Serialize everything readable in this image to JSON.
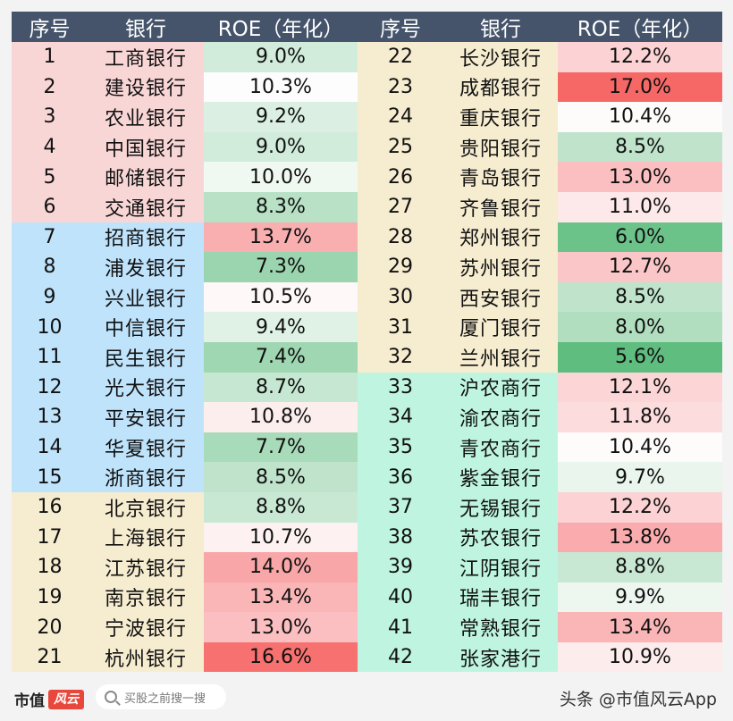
{
  "header": {
    "idx": "序号",
    "bank": "银行",
    "roe": "ROE（年化）"
  },
  "colors": {
    "large_state": "#f9d6d6",
    "joint_stock": "#bfe3fb",
    "city_bank": "#f6ecd0",
    "rural_bank": "#bff5e0",
    "header_bg": "#45546b"
  },
  "left_rows": [
    {
      "idx": "1",
      "bank": "工商银行",
      "roe": "9.0%",
      "group": "large_state",
      "color": "#d2ecdb"
    },
    {
      "idx": "2",
      "bank": "建设银行",
      "roe": "10.3%",
      "group": "large_state",
      "color": "#fdfdfd"
    },
    {
      "idx": "3",
      "bank": "农业银行",
      "roe": "9.2%",
      "group": "large_state",
      "color": "#dbf0e2"
    },
    {
      "idx": "4",
      "bank": "中国银行",
      "roe": "9.0%",
      "group": "large_state",
      "color": "#d2ecdb"
    },
    {
      "idx": "5",
      "bank": "邮储银行",
      "roe": "10.0%",
      "group": "large_state",
      "color": "#f0f8f2"
    },
    {
      "idx": "6",
      "bank": "交通银行",
      "roe": "8.3%",
      "group": "large_state",
      "color": "#b8e1c6"
    },
    {
      "idx": "7",
      "bank": "招商银行",
      "roe": "13.7%",
      "group": "joint_stock",
      "color": "#f9aeb0"
    },
    {
      "idx": "8",
      "bank": "浦发银行",
      "roe": "7.3%",
      "group": "joint_stock",
      "color": "#9bd5af"
    },
    {
      "idx": "9",
      "bank": "兴业银行",
      "roe": "10.5%",
      "group": "joint_stock",
      "color": "#fef8f8"
    },
    {
      "idx": "10",
      "bank": "中信银行",
      "roe": "9.4%",
      "group": "joint_stock",
      "color": "#e0f2e6"
    },
    {
      "idx": "11",
      "bank": "民生银行",
      "roe": "7.4%",
      "group": "joint_stock",
      "color": "#9fd7b2"
    },
    {
      "idx": "12",
      "bank": "光大银行",
      "roe": "8.7%",
      "group": "joint_stock",
      "color": "#c6e7d1"
    },
    {
      "idx": "13",
      "bank": "平安银行",
      "roe": "10.8%",
      "group": "joint_stock",
      "color": "#fdeeee"
    },
    {
      "idx": "14",
      "bank": "华夏银行",
      "roe": "7.7%",
      "group": "joint_stock",
      "color": "#a8dbba"
    },
    {
      "idx": "15",
      "bank": "浙商银行",
      "roe": "8.5%",
      "group": "joint_stock",
      "color": "#bfe4cb"
    },
    {
      "idx": "16",
      "bank": "北京银行",
      "roe": "8.8%",
      "group": "city_bank",
      "color": "#c9e8d4"
    },
    {
      "idx": "17",
      "bank": "上海银行",
      "roe": "10.7%",
      "group": "city_bank",
      "color": "#fdf1f1"
    },
    {
      "idx": "18",
      "bank": "江苏银行",
      "roe": "14.0%",
      "group": "city_bank",
      "color": "#f8a6a8"
    },
    {
      "idx": "19",
      "bank": "南京银行",
      "roe": "13.4%",
      "group": "city_bank",
      "color": "#fab5b7"
    },
    {
      "idx": "20",
      "bank": "宁波银行",
      "roe": "13.0%",
      "group": "city_bank",
      "color": "#fbbfc1"
    },
    {
      "idx": "21",
      "bank": "杭州银行",
      "roe": "16.6%",
      "group": "city_bank",
      "color": "#f6716f"
    }
  ],
  "right_rows": [
    {
      "idx": "22",
      "bank": "长沙银行",
      "roe": "12.2%",
      "group": "city_bank",
      "color": "#fcd2d4"
    },
    {
      "idx": "23",
      "bank": "成都银行",
      "roe": "17.0%",
      "group": "city_bank",
      "color": "#f56866"
    },
    {
      "idx": "24",
      "bank": "重庆银行",
      "roe": "10.4%",
      "group": "city_bank",
      "color": "#fefbfb"
    },
    {
      "idx": "25",
      "bank": "贵阳银行",
      "roe": "8.5%",
      "group": "city_bank",
      "color": "#bfe4cb"
    },
    {
      "idx": "26",
      "bank": "青岛银行",
      "roe": "13.0%",
      "group": "city_bank",
      "color": "#fbbfc1"
    },
    {
      "idx": "27",
      "bank": "齐鲁银行",
      "roe": "11.0%",
      "group": "city_bank",
      "color": "#fde9ea"
    },
    {
      "idx": "28",
      "bank": "郑州银行",
      "roe": "6.0%",
      "group": "city_bank",
      "color": "#6cc38a"
    },
    {
      "idx": "29",
      "bank": "苏州银行",
      "roe": "12.7%",
      "group": "city_bank",
      "color": "#fbc6c8"
    },
    {
      "idx": "30",
      "bank": "西安银行",
      "roe": "8.5%",
      "group": "city_bank",
      "color": "#bfe4cb"
    },
    {
      "idx": "31",
      "bank": "厦门银行",
      "roe": "8.0%",
      "group": "city_bank",
      "color": "#b0debf"
    },
    {
      "idx": "32",
      "bank": "兰州银行",
      "roe": "5.6%",
      "group": "city_bank",
      "color": "#5fbd7f"
    },
    {
      "idx": "33",
      "bank": "沪农商行",
      "roe": "12.1%",
      "group": "rural_bank",
      "color": "#fcd5d6"
    },
    {
      "idx": "34",
      "bank": "渝农商行",
      "roe": "11.8%",
      "group": "rural_bank",
      "color": "#fcdcdd"
    },
    {
      "idx": "35",
      "bank": "青农商行",
      "roe": "10.4%",
      "group": "rural_bank",
      "color": "#fefbfb"
    },
    {
      "idx": "36",
      "bank": "紫金银行",
      "roe": "9.7%",
      "group": "rural_bank",
      "color": "#e9f5ed"
    },
    {
      "idx": "37",
      "bank": "无锡银行",
      "roe": "12.2%",
      "group": "rural_bank",
      "color": "#fcd2d4"
    },
    {
      "idx": "38",
      "bank": "苏农银行",
      "roe": "13.8%",
      "group": "rural_bank",
      "color": "#f9abad"
    },
    {
      "idx": "39",
      "bank": "江阴银行",
      "roe": "8.8%",
      "group": "rural_bank",
      "color": "#c9e8d4"
    },
    {
      "idx": "40",
      "bank": "瑞丰银行",
      "roe": "9.9%",
      "group": "rural_bank",
      "color": "#edf7f0"
    },
    {
      "idx": "41",
      "bank": "常熟银行",
      "roe": "13.4%",
      "group": "rural_bank",
      "color": "#fab5b7"
    },
    {
      "idx": "42",
      "bank": "张家港行",
      "roe": "10.9%",
      "group": "rural_bank",
      "color": "#fdecec"
    }
  ],
  "footer": {
    "logo_text": "市值",
    "logo_mark": "风云",
    "search_placeholder": "买股之前搜一搜",
    "credit": "头条 @市值风云App"
  }
}
